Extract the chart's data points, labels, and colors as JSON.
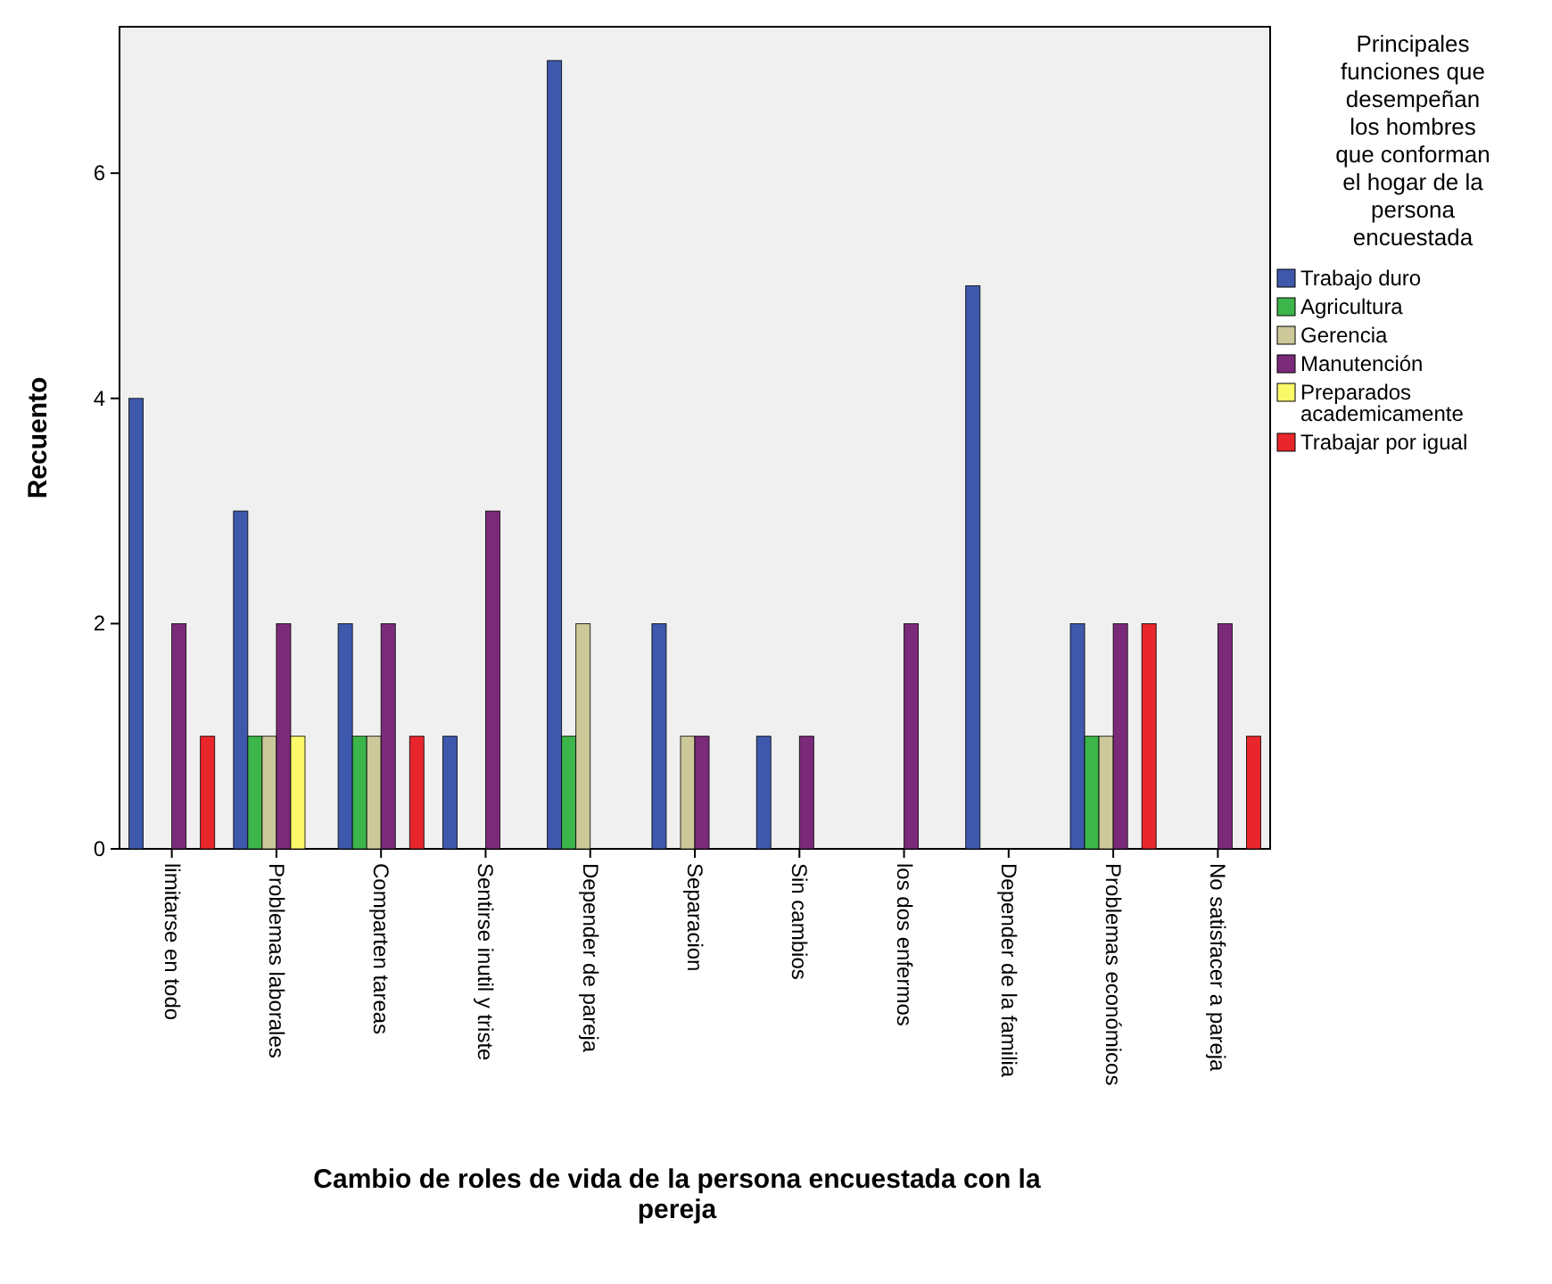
{
  "chart_data": {
    "type": "bar",
    "xlabel": "Cambio de roles de vida de la persona encuestada con la pereja",
    "ylabel": "Recuento",
    "legend_title": "Principales funciones que desempeñan los hombres que conforman el hogar de la persona encuestada",
    "categories": [
      "limitarse en todo",
      "Problemas laborales",
      "Comparten tareas",
      "Sentirse inutil y triste",
      "Depender de pareja",
      "Separacion",
      "Sin cambios",
      "los dos enfermos",
      "Depender de la familia",
      "Problemas económicos",
      "No satisfacer a pareja"
    ],
    "series": [
      {
        "name": "Trabajo duro",
        "color": "#3e58ac",
        "values": [
          4,
          3,
          2,
          1,
          7,
          2,
          1,
          null,
          5,
          2,
          null
        ]
      },
      {
        "name": "Agricultura",
        "color": "#3cb54a",
        "values": [
          null,
          1,
          1,
          null,
          1,
          null,
          null,
          null,
          null,
          1,
          null
        ]
      },
      {
        "name": "Gerencia",
        "color": "#cdc89a",
        "values": [
          null,
          1,
          1,
          null,
          2,
          1,
          null,
          null,
          null,
          1,
          null
        ]
      },
      {
        "name": "Manutención",
        "color": "#7b2a7a",
        "values": [
          2,
          2,
          2,
          3,
          null,
          1,
          1,
          2,
          null,
          2,
          2
        ]
      },
      {
        "name": "Preparados academicamente",
        "color": "#fbf86a",
        "values": [
          null,
          1,
          null,
          null,
          null,
          null,
          null,
          null,
          null,
          null,
          null
        ]
      },
      {
        "name": "Trabajar por igual",
        "color": "#e8262c",
        "values": [
          1,
          null,
          1,
          null,
          null,
          null,
          null,
          null,
          null,
          2,
          1
        ]
      }
    ],
    "ylim": [
      0,
      7.3
    ],
    "yticks": [
      0,
      2,
      4,
      6
    ],
    "grid": false,
    "legend": "right"
  }
}
